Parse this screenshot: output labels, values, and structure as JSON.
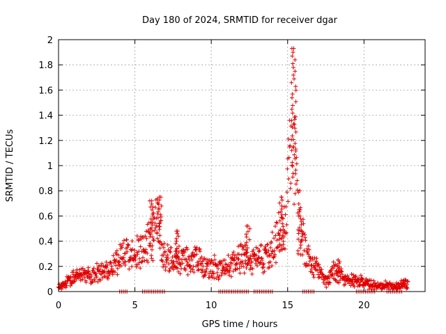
{
  "chart_data": {
    "type": "scatter",
    "title": "Day 180 of 2024, SRMTID for receiver dgar",
    "xlabel": "GPS time / hours",
    "ylabel": "SRMTID / TECUs",
    "xlim": [
      0,
      24
    ],
    "ylim": [
      0,
      2
    ],
    "xticks": [
      0,
      5,
      10,
      15,
      20
    ],
    "xtick_labels": [
      "0",
      "5",
      "10",
      "15",
      "20"
    ],
    "yticks": [
      0,
      0.2,
      0.4,
      0.6,
      0.8,
      1,
      1.2,
      1.4,
      1.6,
      1.8,
      2
    ],
    "ytick_labels": [
      "0",
      "0.2",
      "0.4",
      "0.6",
      "0.8",
      "1",
      "1.2",
      "1.4",
      "1.6",
      "1.8",
      "2"
    ],
    "grid": true,
    "marker": "plus",
    "color": "#e00000",
    "series": [
      {
        "name": "SRMTID",
        "envelope": {
          "x": [
            0,
            0.5,
            1,
            1.5,
            2,
            2.5,
            3,
            3.5,
            4,
            4.3,
            4.6,
            5,
            5.5,
            5.8,
            6,
            6.2,
            6.5,
            6.8,
            7,
            7.5,
            8,
            8.5,
            9,
            9.5,
            10,
            10.5,
            11,
            11.5,
            12,
            12.5,
            13,
            13.5,
            14,
            14.3,
            14.6,
            14.9,
            15.1,
            15.3,
            15.5,
            15.7,
            16,
            16.3,
            16.6,
            17,
            17.3,
            17.6,
            18,
            18.3,
            18.6,
            19,
            19.5,
            20,
            20.5,
            21,
            21.5,
            22,
            22.5,
            22.9
          ],
          "y": [
            0.05,
            0.07,
            0.12,
            0.14,
            0.13,
            0.16,
            0.18,
            0.2,
            0.28,
            0.33,
            0.32,
            0.34,
            0.32,
            0.38,
            0.55,
            0.45,
            0.68,
            0.4,
            0.3,
            0.28,
            0.25,
            0.27,
            0.3,
            0.22,
            0.2,
            0.22,
            0.2,
            0.25,
            0.3,
            0.25,
            0.3,
            0.28,
            0.35,
            0.45,
            0.5,
            0.55,
            1.1,
            1.6,
            1.0,
            0.7,
            0.45,
            0.3,
            0.22,
            0.2,
            0.12,
            0.08,
            0.18,
            0.15,
            0.12,
            0.1,
            0.1,
            0.08,
            0.06,
            0.05,
            0.05,
            0.04,
            0.06,
            0.05
          ]
        },
        "peaks": [
          {
            "x": 15.4,
            "y": 1.93
          },
          {
            "x": 6.6,
            "y": 0.75
          },
          {
            "x": 6.1,
            "y": 0.72
          },
          {
            "x": 14.6,
            "y": 0.75
          },
          {
            "x": 15.8,
            "y": 0.6
          },
          {
            "x": 12.4,
            "y": 0.52
          },
          {
            "x": 7.8,
            "y": 0.48
          },
          {
            "x": 18.3,
            "y": 0.25
          }
        ],
        "zero_band_x": [
          [
            4.0,
            4.5
          ],
          [
            5.5,
            7.0
          ],
          [
            10.5,
            12.5
          ],
          [
            12.8,
            14.0
          ],
          [
            16.0,
            16.8
          ],
          [
            19.5,
            20.8
          ],
          [
            21.5,
            22.5
          ]
        ]
      }
    ]
  }
}
